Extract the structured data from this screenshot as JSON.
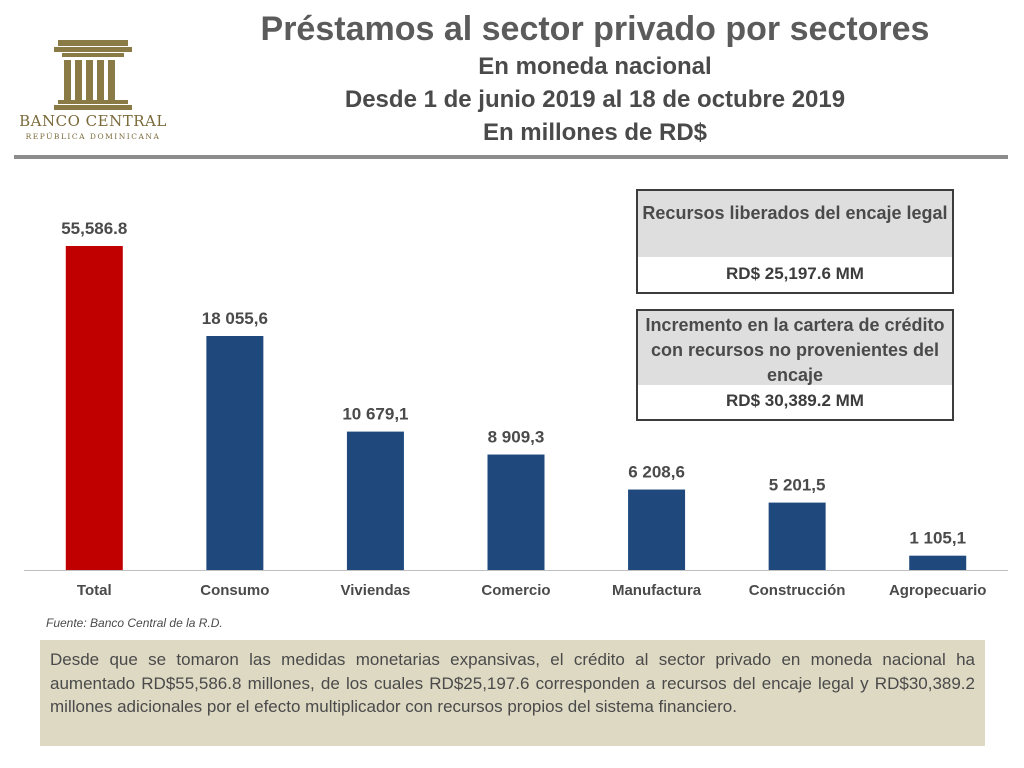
{
  "header": {
    "logo": {
      "name": "BANCO CENTRAL",
      "sub": "REPÚBLICA DOMINICANA",
      "color": "#7a6a3a"
    },
    "title": "Préstamos al sector privado por sectores",
    "subtitle_lines": [
      "En moneda nacional",
      "Desde 1 de junio 2019 al 18 de octubre 2019",
      "En millones de RD$"
    ]
  },
  "chart_data": {
    "type": "bar",
    "categories": [
      "Total",
      "Consumo",
      "Viviendas",
      "Comercio",
      "Manufactura",
      "Construcción",
      "Agropecuario"
    ],
    "values": [
      55586.8,
      18055.6,
      10679.1,
      8909.3,
      6208.6,
      5201.5,
      1105.1
    ],
    "data_labels": [
      "55,586.8",
      "18 055,6",
      "10 679,1",
      "8 909,3",
      "6 208,6",
      "5 201,5",
      "1 105,1"
    ],
    "colors": [
      "#c00000",
      "#1f497d",
      "#1f497d",
      "#1f497d",
      "#1f497d",
      "#1f497d",
      "#1f497d"
    ],
    "axis_break": true,
    "ylim": [
      0,
      25000
    ],
    "grid": false,
    "title": "",
    "xlabel": "",
    "ylabel": ""
  },
  "boxes": [
    {
      "head": "Recursos liberados del encaje legal",
      "value": "RD$ 25,197.6 MM"
    },
    {
      "head": "Incremento en la cartera de crédito con recursos no provenientes del encaje",
      "value": "RD$ 30,389.2 MM"
    }
  ],
  "source": "Fuente: Banco Central de la R.D.",
  "note": "Desde que se tomaron las medidas monetarias expansivas, el crédito al sector privado en moneda nacional ha aumentado RD$55,586.8 millones, de los cuales RD$25,197.6 corresponden a recursos del encaje legal y RD$30,389.2 millones adicionales por el efecto multiplicador con recursos propios del sistema financiero."
}
